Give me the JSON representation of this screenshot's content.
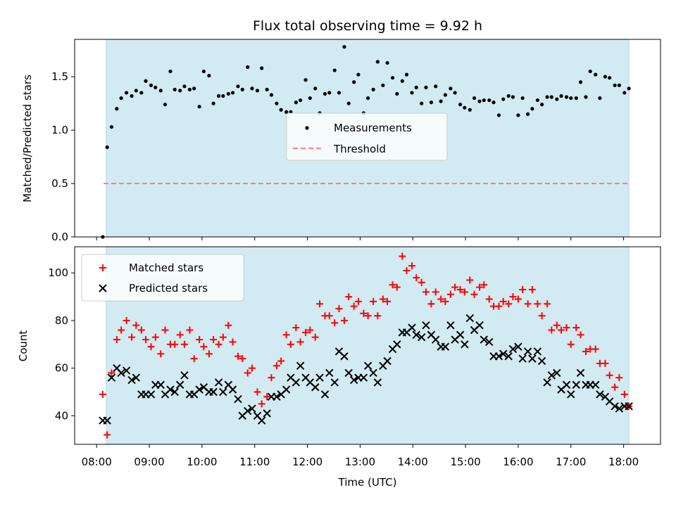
{
  "chart_data": [
    {
      "type": "scatter",
      "title": "Flux total observing time = 9.92 h",
      "xlabel": "",
      "ylabel": "Matched/Predicted stars",
      "ylim": [
        0,
        1.85
      ],
      "yticks": [
        "0.0",
        "0.5",
        "1.0",
        "1.5"
      ],
      "legend_position": "center",
      "shaded_interval": [
        "08:11",
        "18:06"
      ],
      "shade_color": "#add8e6",
      "series": [
        {
          "name": "Measurements",
          "marker": "dot",
          "color": "#000000",
          "x": [
            "08:07",
            "08:12",
            "08:17",
            "08:23",
            "08:28",
            "08:34",
            "08:40",
            "08:45",
            "08:51",
            "08:56",
            "09:02",
            "09:07",
            "09:13",
            "09:18",
            "09:24",
            "09:29",
            "09:35",
            "09:40",
            "09:46",
            "09:51",
            "09:57",
            "10:02",
            "10:08",
            "10:13",
            "10:19",
            "10:24",
            "10:30",
            "10:35",
            "10:41",
            "10:46",
            "10:52",
            "10:57",
            "11:03",
            "11:08",
            "11:14",
            "11:19",
            "11:25",
            "11:30",
            "11:36",
            "11:41",
            "11:47",
            "11:52",
            "11:58",
            "12:03",
            "12:09",
            "12:14",
            "12:20",
            "12:25",
            "12:31",
            "12:36",
            "12:42",
            "12:47",
            "12:53",
            "12:58",
            "13:04",
            "13:09",
            "13:15",
            "13:20",
            "13:26",
            "13:31",
            "13:37",
            "13:42",
            "13:48",
            "13:53",
            "13:59",
            "14:04",
            "14:10",
            "14:15",
            "14:21",
            "14:26",
            "14:32",
            "14:37",
            "14:43",
            "14:48",
            "14:54",
            "14:59",
            "15:05",
            "15:10",
            "15:16",
            "15:21",
            "15:27",
            "15:32",
            "15:38",
            "15:43",
            "15:49",
            "15:54",
            "16:00",
            "16:05",
            "16:11",
            "16:16",
            "16:22",
            "16:27",
            "16:33",
            "16:38",
            "16:44",
            "16:49",
            "16:55",
            "17:00",
            "17:06",
            "17:11",
            "17:17",
            "17:22",
            "17:28",
            "17:33",
            "17:39",
            "17:44",
            "17:50",
            "17:55",
            "18:01",
            "18:06"
          ],
          "values": [
            0.0,
            0.84,
            1.03,
            1.2,
            1.3,
            1.35,
            1.32,
            1.37,
            1.35,
            1.46,
            1.42,
            1.4,
            1.37,
            1.24,
            1.55,
            1.38,
            1.37,
            1.41,
            1.38,
            1.39,
            1.22,
            1.55,
            1.51,
            1.25,
            1.32,
            1.32,
            1.34,
            1.35,
            1.41,
            1.38,
            1.59,
            1.39,
            1.37,
            1.58,
            1.38,
            1.33,
            1.25,
            1.19,
            1.17,
            1.17,
            1.26,
            1.28,
            1.47,
            1.3,
            1.39,
            1.16,
            1.34,
            1.35,
            1.56,
            1.35,
            1.78,
            1.25,
            1.45,
            1.52,
            1.16,
            1.3,
            1.38,
            1.64,
            1.42,
            1.63,
            1.49,
            1.34,
            1.46,
            1.52,
            1.35,
            1.4,
            1.25,
            1.4,
            1.26,
            1.41,
            1.27,
            1.33,
            1.39,
            1.35,
            1.24,
            1.21,
            1.19,
            1.3,
            1.27,
            1.28,
            1.28,
            1.26,
            1.14,
            1.29,
            1.32,
            1.31,
            1.14,
            1.3,
            1.15,
            1.2,
            1.28,
            1.24,
            1.31,
            1.31,
            1.29,
            1.32,
            1.31,
            1.3,
            1.3,
            1.45,
            1.31,
            1.55,
            1.52,
            1.3,
            1.5,
            1.49,
            1.42,
            1.42,
            1.35,
            1.39
          ]
        },
        {
          "name": "Threshold",
          "type": "hline",
          "value": 0.5,
          "x_range": [
            "08:11",
            "18:06"
          ],
          "color": "#ff7f7f",
          "style": "dashed"
        }
      ]
    },
    {
      "type": "scatter",
      "title": "",
      "xlabel": "Time (UTC)",
      "ylabel": "Count",
      "ylim": [
        28,
        111
      ],
      "yticks": [
        "40",
        "60",
        "80",
        "100"
      ],
      "xticks": [
        "08:00",
        "09:00",
        "10:00",
        "11:00",
        "12:00",
        "13:00",
        "14:00",
        "15:00",
        "16:00",
        "17:00",
        "18:00"
      ],
      "legend_position": "upper left",
      "shaded_interval": [
        "08:11",
        "18:06"
      ],
      "shade_color": "#add8e6",
      "series": [
        {
          "name": "Matched stars",
          "marker": "plus",
          "color": "#ff0000",
          "x": [
            "08:07",
            "08:12",
            "08:17",
            "08:23",
            "08:28",
            "08:34",
            "08:40",
            "08:45",
            "08:51",
            "08:56",
            "09:02",
            "09:07",
            "09:13",
            "09:18",
            "09:24",
            "09:29",
            "09:35",
            "09:40",
            "09:46",
            "09:51",
            "09:57",
            "10:02",
            "10:08",
            "10:13",
            "10:19",
            "10:24",
            "10:30",
            "10:35",
            "10:41",
            "10:46",
            "10:52",
            "10:57",
            "11:03",
            "11:08",
            "11:14",
            "11:19",
            "11:25",
            "11:30",
            "11:36",
            "11:41",
            "11:47",
            "11:52",
            "11:58",
            "12:03",
            "12:09",
            "12:14",
            "12:20",
            "12:25",
            "12:31",
            "12:36",
            "12:42",
            "12:47",
            "12:53",
            "12:58",
            "13:04",
            "13:09",
            "13:15",
            "13:20",
            "13:26",
            "13:31",
            "13:37",
            "13:42",
            "13:48",
            "13:53",
            "13:59",
            "14:04",
            "14:10",
            "14:15",
            "14:21",
            "14:26",
            "14:32",
            "14:37",
            "14:43",
            "14:48",
            "14:54",
            "14:59",
            "15:05",
            "15:10",
            "15:16",
            "15:21",
            "15:27",
            "15:32",
            "15:38",
            "15:43",
            "15:49",
            "15:54",
            "16:00",
            "16:05",
            "16:11",
            "16:16",
            "16:22",
            "16:27",
            "16:33",
            "16:38",
            "16:44",
            "16:49",
            "16:55",
            "17:00",
            "17:06",
            "17:11",
            "17:17",
            "17:22",
            "17:28",
            "17:33",
            "17:39",
            "17:44",
            "17:50",
            "17:55",
            "18:01",
            "18:06"
          ],
          "values": [
            49,
            32,
            58,
            72,
            76,
            80,
            73,
            78,
            76,
            72,
            69,
            73,
            66,
            76,
            70,
            70,
            74,
            70,
            76,
            64,
            72,
            69,
            66,
            72,
            70,
            73,
            78,
            71,
            65,
            64,
            58,
            60,
            50,
            45,
            48,
            56,
            61,
            63,
            74,
            70,
            77,
            71,
            75,
            76,
            73,
            87,
            82,
            82,
            79,
            85,
            80,
            90,
            86,
            88,
            83,
            82,
            88,
            82,
            89,
            88,
            95,
            94,
            107,
            101,
            103,
            98,
            96,
            92,
            87,
            92,
            89,
            88,
            91,
            94,
            93,
            92,
            97,
            91,
            94,
            95,
            89,
            86,
            86,
            88,
            87,
            90,
            89,
            93,
            87,
            93,
            87,
            82,
            87,
            76,
            78,
            76,
            77,
            70,
            77,
            74,
            67,
            68,
            68,
            62,
            62,
            57,
            52,
            56,
            49,
            44
          ]
        },
        {
          "name": "Predicted stars",
          "marker": "x",
          "color": "#000000",
          "x": [
            "08:07",
            "08:12",
            "08:17",
            "08:23",
            "08:28",
            "08:34",
            "08:40",
            "08:45",
            "08:51",
            "08:56",
            "09:02",
            "09:07",
            "09:13",
            "09:18",
            "09:24",
            "09:29",
            "09:35",
            "09:40",
            "09:46",
            "09:51",
            "09:57",
            "10:02",
            "10:08",
            "10:13",
            "10:19",
            "10:24",
            "10:30",
            "10:35",
            "10:41",
            "10:46",
            "10:52",
            "10:57",
            "11:03",
            "11:08",
            "11:14",
            "11:19",
            "11:25",
            "11:30",
            "11:36",
            "11:41",
            "11:47",
            "11:52",
            "11:58",
            "12:03",
            "12:09",
            "12:14",
            "12:20",
            "12:25",
            "12:31",
            "12:36",
            "12:42",
            "12:47",
            "12:53",
            "12:58",
            "13:04",
            "13:09",
            "13:15",
            "13:20",
            "13:26",
            "13:31",
            "13:37",
            "13:42",
            "13:48",
            "13:53",
            "13:59",
            "14:04",
            "14:10",
            "14:15",
            "14:21",
            "14:26",
            "14:32",
            "14:37",
            "14:43",
            "14:48",
            "14:54",
            "14:59",
            "15:05",
            "15:10",
            "15:16",
            "15:21",
            "15:27",
            "15:32",
            "15:38",
            "15:43",
            "15:49",
            "15:54",
            "16:00",
            "16:05",
            "16:11",
            "16:16",
            "16:22",
            "16:27",
            "16:33",
            "16:38",
            "16:44",
            "16:49",
            "16:55",
            "17:00",
            "17:06",
            "17:11",
            "17:17",
            "17:22",
            "17:28",
            "17:33",
            "17:39",
            "17:44",
            "17:50",
            "17:55",
            "18:01",
            "18:06"
          ],
          "values": [
            38,
            38,
            56,
            60,
            58,
            59,
            55,
            56,
            49,
            49,
            49,
            53,
            53,
            49,
            51,
            50,
            53,
            57,
            49,
            49,
            51,
            52,
            50,
            50,
            54,
            50,
            53,
            51,
            47,
            40,
            42,
            43,
            40,
            38,
            41,
            48,
            48,
            49,
            51,
            56,
            54,
            61,
            56,
            54,
            52,
            56,
            49,
            58,
            54,
            67,
            65,
            58,
            55,
            56,
            56,
            61,
            58,
            54,
            61,
            63,
            68,
            70,
            75,
            75,
            77,
            74,
            73,
            78,
            74,
            72,
            69,
            69,
            78,
            72,
            74,
            70,
            81,
            76,
            78,
            72,
            71,
            65,
            65,
            66,
            65,
            68,
            69,
            64,
            67,
            64,
            67,
            63,
            54,
            57,
            58,
            51,
            53,
            49,
            53,
            58,
            53,
            53,
            53,
            49,
            48,
            46,
            44,
            43,
            44,
            44
          ]
        }
      ]
    }
  ]
}
